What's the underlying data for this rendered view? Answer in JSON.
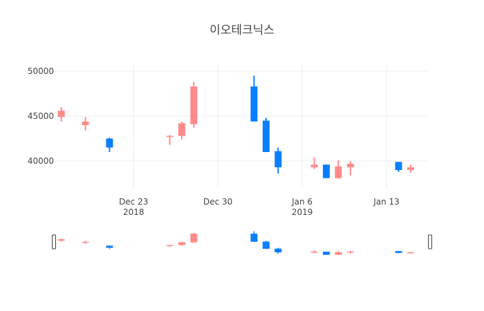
{
  "chart_data": {
    "type": "candlestick",
    "title": "이오테크닉스",
    "increasing_color": "#FF8A8A",
    "decreasing_color": "#0A7EFF",
    "grid": true,
    "ylim": [
      37000,
      51000
    ],
    "xlim": [
      "2018-12-17",
      "2019-01-16"
    ],
    "y_ticks": [
      40000,
      45000,
      50000
    ],
    "x_ticks": [
      {
        "date": "2018-12-23",
        "label": "Dec 23",
        "sublabel": "2018"
      },
      {
        "date": "2018-12-30",
        "label": "Dec 30",
        "sublabel": ""
      },
      {
        "date": "2019-01-06",
        "label": "Jan 6",
        "sublabel": "2019"
      },
      {
        "date": "2019-01-13",
        "label": "Jan 13",
        "sublabel": ""
      }
    ],
    "candles": [
      {
        "date": "2018-12-17",
        "open": 44900,
        "high": 46000,
        "low": 44400,
        "close": 45600
      },
      {
        "date": "2018-12-19",
        "open": 44000,
        "high": 44900,
        "low": 43400,
        "close": 44400
      },
      {
        "date": "2018-12-21",
        "open": 42500,
        "high": 42600,
        "low": 41000,
        "close": 41500
      },
      {
        "date": "2018-12-26",
        "open": 42700,
        "high": 42900,
        "low": 41800,
        "close": 42800
      },
      {
        "date": "2018-12-27",
        "open": 42800,
        "high": 44400,
        "low": 42400,
        "close": 44200
      },
      {
        "date": "2018-12-28",
        "open": 44100,
        "high": 48800,
        "low": 43700,
        "close": 48300
      },
      {
        "date": "2019-01-02",
        "open": 48300,
        "high": 49500,
        "low": 44400,
        "close": 44400
      },
      {
        "date": "2019-01-03",
        "open": 44500,
        "high": 44800,
        "low": 41000,
        "close": 41000
      },
      {
        "date": "2019-01-04",
        "open": 41100,
        "high": 41500,
        "low": 38600,
        "close": 39300
      },
      {
        "date": "2019-01-07",
        "open": 39300,
        "high": 40400,
        "low": 39100,
        "close": 39600
      },
      {
        "date": "2019-01-08",
        "open": 39600,
        "high": 39600,
        "low": 38100,
        "close": 38100
      },
      {
        "date": "2019-01-09",
        "open": 38100,
        "high": 40100,
        "low": 38000,
        "close": 39400
      },
      {
        "date": "2019-01-10",
        "open": 39300,
        "high": 40000,
        "low": 38400,
        "close": 39700
      },
      {
        "date": "2019-01-14",
        "open": 39900,
        "high": 39900,
        "low": 38800,
        "close": 39000
      },
      {
        "date": "2019-01-15",
        "open": 39000,
        "high": 39600,
        "low": 38700,
        "close": 39300
      }
    ]
  }
}
